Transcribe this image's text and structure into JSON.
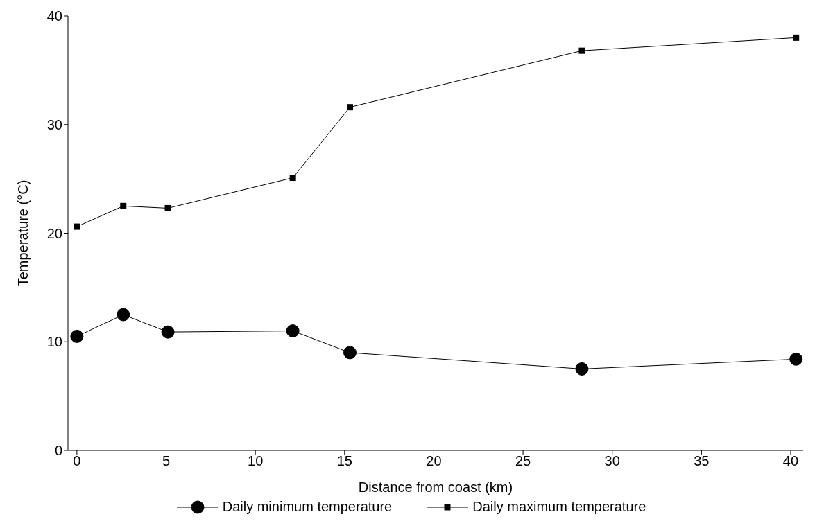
{
  "chart_data": {
    "type": "line",
    "xlabel": "Distance from coast (km)",
    "ylabel": "Temperature (°C)",
    "x": [
      0,
      2.6,
      5.1,
      12.1,
      15.3,
      28.3,
      40.3
    ],
    "series": [
      {
        "name": "Daily minimum temperature",
        "color": "#000000",
        "marker": "circle",
        "values": [
          10.5,
          12.5,
          10.9,
          11.0,
          9.0,
          7.5,
          8.4
        ]
      },
      {
        "name": "Daily maximum temperature",
        "color": "#000000",
        "marker": "square",
        "values": [
          20.6,
          22.5,
          22.3,
          25.1,
          31.6,
          36.8,
          38.0
        ]
      }
    ],
    "xlim": [
      -0.5,
      40.7
    ],
    "xticks": [
      0,
      5,
      10,
      15,
      20,
      25,
      30,
      35,
      40
    ],
    "ylim": [
      0,
      40
    ],
    "yticks": [
      0,
      10,
      20,
      30,
      40
    ],
    "grid": false,
    "legend": "bottom",
    "line_style": "solid"
  }
}
